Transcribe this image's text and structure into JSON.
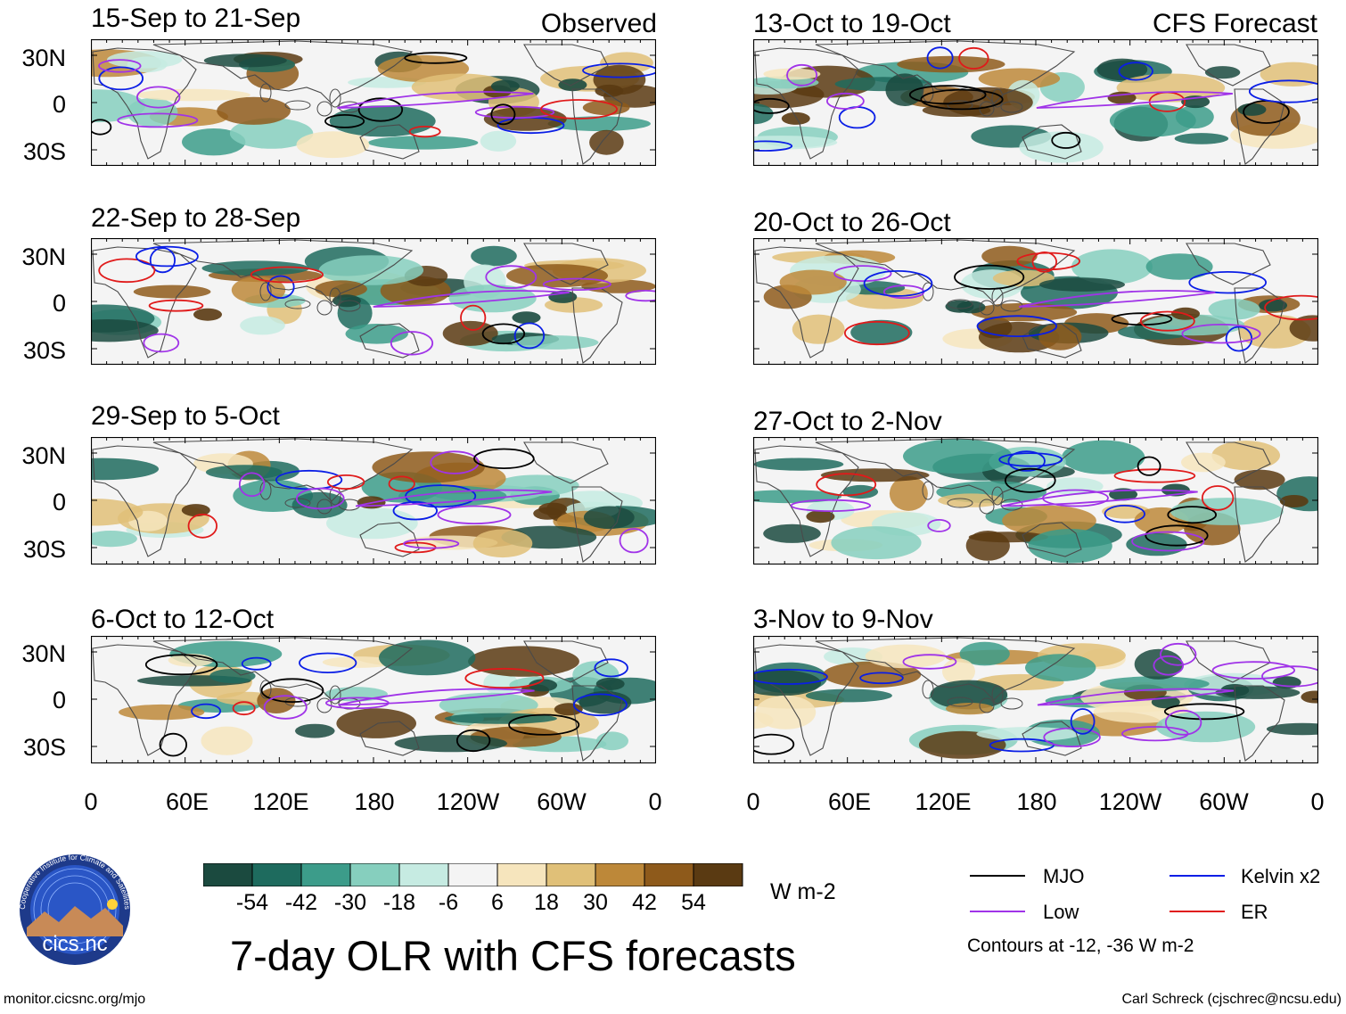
{
  "header": {
    "left_tag": "Observed",
    "right_tag": "CFS Forecast"
  },
  "panels": [
    {
      "title": "15-Sep to 21-Sep"
    },
    {
      "title": "22-Sep to 28-Sep"
    },
    {
      "title": "29-Sep to 5-Oct"
    },
    {
      "title": "6-Oct to 12-Oct"
    },
    {
      "title": "13-Oct to 19-Oct"
    },
    {
      "title": "20-Oct to 26-Oct"
    },
    {
      "title": "27-Oct to 2-Nov"
    },
    {
      "title": "3-Nov to 9-Nov"
    }
  ],
  "axes": {
    "lat_labels": [
      "30N",
      "0",
      "30S"
    ],
    "lon_labels": [
      "0",
      "60E",
      "120E",
      "180",
      "120W",
      "60W",
      "0"
    ]
  },
  "colorbar": {
    "colors": [
      "#1b4a3f",
      "#1e6b5e",
      "#3c9c8a",
      "#86cfbe",
      "#c6ebe2",
      "#f4f4f4",
      "#f6e5bd",
      "#e0c078",
      "#bd8839",
      "#8e5a1b",
      "#5a3a12"
    ],
    "labels": [
      "-54",
      "-42",
      "-30",
      "-18",
      "-6",
      "6",
      "18",
      "30",
      "42",
      "54"
    ],
    "units": "W m-2"
  },
  "legend": {
    "items": [
      {
        "label": "MJO",
        "color": "#000000"
      },
      {
        "label": "Kelvin x2",
        "color": "#0a1ee6"
      },
      {
        "label": "Low",
        "color": "#a033e8"
      },
      {
        "label": "ER",
        "color": "#e01a1a"
      }
    ],
    "contours_note": "Contours at -12, -36 W m-2"
  },
  "main_title": "7-day OLR with CFS forecasts",
  "logo_text": "cics.nc",
  "logo_ring_text": "Cooperative Institute for Climate and Satellites",
  "footer": {
    "url": "monitor.cicsnc.org/mjo",
    "credit": "Carl Schreck (cjschrec@ncsu.edu)"
  }
}
